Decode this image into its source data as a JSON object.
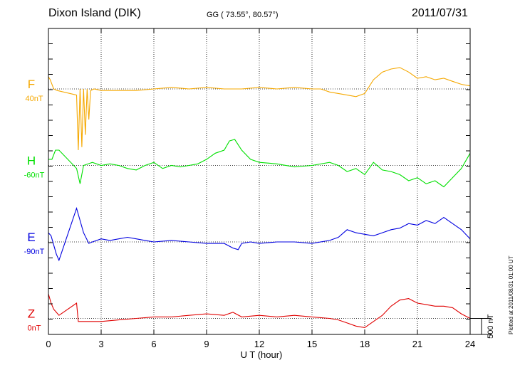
{
  "header": {
    "station": "Dixon Island (DIK)",
    "coords": "GG ( 73.55°,  80.57°)",
    "date": "2011/07/31"
  },
  "footer": {
    "plotted": "Plotted at 2011/08/31 01:00 UT"
  },
  "chart_data": {
    "type": "line",
    "xlabel": "U T (hour)",
    "xlim": [
      0,
      24
    ],
    "xticks": [
      0,
      3,
      6,
      9,
      12,
      15,
      18,
      21,
      24
    ],
    "scale_label": "500 nT",
    "scale_nT": 500,
    "range_nT": 1000,
    "series": [
      {
        "name": "F",
        "offset": "40nT",
        "color": "#f5a800",
        "baseline_nT": 0,
        "x": [
          0,
          0.1,
          0.3,
          0.5,
          1.6,
          1.7,
          1.8,
          1.9,
          2.0,
          2.1,
          2.2,
          2.3,
          2.4,
          2.6,
          3,
          4,
          5,
          6,
          7,
          8,
          9,
          10,
          11,
          12,
          13,
          14,
          15,
          15.5,
          16,
          16.5,
          17,
          17.5,
          18,
          18.5,
          19,
          19.5,
          20,
          20.5,
          21,
          21.5,
          22,
          22.5,
          23,
          23.5,
          24
        ],
        "y": [
          40,
          30,
          0,
          -5,
          -20,
          -200,
          0,
          -190,
          0,
          -150,
          0,
          -100,
          -5,
          0,
          -5,
          -5,
          -5,
          0,
          5,
          0,
          5,
          0,
          0,
          5,
          0,
          5,
          0,
          0,
          -10,
          -15,
          -20,
          -25,
          -15,
          30,
          55,
          65,
          70,
          55,
          35,
          40,
          30,
          35,
          25,
          15,
          10
        ]
      },
      {
        "name": "H",
        "offset": "-60nT",
        "color": "#00e000",
        "baseline_nT": -250,
        "x": [
          0,
          0.2,
          0.4,
          0.6,
          1.6,
          1.8,
          2,
          2.5,
          3,
          3.5,
          4,
          4.5,
          5,
          5.5,
          6,
          6.5,
          7,
          7.5,
          8,
          8.5,
          9,
          9.5,
          10,
          10.3,
          10.6,
          11,
          11.5,
          12,
          13,
          14,
          15,
          16,
          16.5,
          17,
          17.5,
          18,
          18.5,
          19,
          19.5,
          20,
          20.5,
          21,
          21.5,
          22,
          22.5,
          23,
          23.5,
          24
        ],
        "y": [
          -230,
          -230,
          -200,
          -200,
          -260,
          -310,
          -250,
          -240,
          -250,
          -245,
          -250,
          -260,
          -265,
          -250,
          -240,
          -260,
          -250,
          -255,
          -250,
          -245,
          -230,
          -210,
          -200,
          -170,
          -165,
          -200,
          -230,
          -240,
          -245,
          -255,
          -250,
          -240,
          -250,
          -270,
          -260,
          -280,
          -240,
          -265,
          -270,
          -280,
          -300,
          -290,
          -310,
          -300,
          -320,
          -290,
          -260,
          -210
        ]
      },
      {
        "name": "E",
        "offset": "-90nT",
        "color": "#0000e0",
        "baseline_nT": -500,
        "x": [
          0,
          0.15,
          0.3,
          0.45,
          0.6,
          1.6,
          1.8,
          2,
          2.3,
          2.5,
          3,
          3.5,
          4,
          4.5,
          5,
          5.5,
          6,
          7,
          8,
          9,
          10,
          10.5,
          10.8,
          11,
          11.5,
          12,
          13,
          14,
          15,
          16,
          16.5,
          17,
          17.5,
          18,
          18.5,
          19,
          19.5,
          20,
          20.5,
          21,
          21.5,
          22,
          22.5,
          23,
          23.5,
          24
        ],
        "y": [
          -470,
          -480,
          -510,
          -540,
          -560,
          -390,
          -430,
          -470,
          -505,
          -500,
          -490,
          -495,
          -490,
          -485,
          -490,
          -495,
          -500,
          -495,
          -500,
          -505,
          -505,
          -520,
          -525,
          -505,
          -500,
          -505,
          -500,
          -500,
          -505,
          -495,
          -485,
          -460,
          -470,
          -475,
          -480,
          -470,
          -460,
          -455,
          -440,
          -445,
          -430,
          -440,
          -420,
          -440,
          -460,
          -490
        ]
      },
      {
        "name": "Z",
        "offset": "0nT",
        "color": "#e00000",
        "baseline_nT": -750,
        "x": [
          0,
          0.15,
          0.3,
          0.45,
          0.6,
          1.6,
          1.7,
          2,
          3,
          4,
          5,
          6,
          7,
          8,
          9,
          10,
          10.5,
          11,
          12,
          13,
          14,
          15,
          16,
          16.5,
          17,
          17.5,
          18,
          18.5,
          19,
          19.5,
          20,
          20.5,
          21,
          21.5,
          22,
          22.5,
          23,
          23.5,
          24
        ],
        "y": [
          -670,
          -700,
          -720,
          -730,
          -740,
          -700,
          -760,
          -760,
          -760,
          -755,
          -750,
          -745,
          -745,
          -740,
          -735,
          -740,
          -730,
          -745,
          -740,
          -745,
          -740,
          -745,
          -750,
          -755,
          -765,
          -775,
          -780,
          -760,
          -740,
          -710,
          -690,
          -685,
          -700,
          -705,
          -710,
          -710,
          -715,
          -735,
          -750
        ]
      }
    ]
  }
}
